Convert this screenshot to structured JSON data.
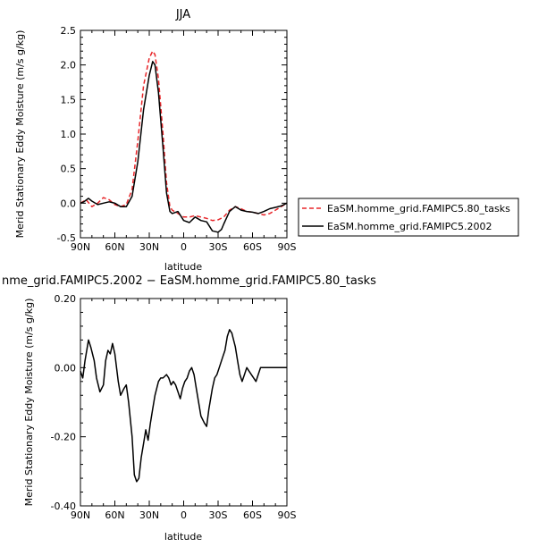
{
  "chart_data": [
    {
      "type": "line",
      "title": "JJA",
      "xlabel": "latitude",
      "ylabel": "Merid Stationary Eddy Moisture (m/s g/kg)",
      "xlim": [
        90,
        -90
      ],
      "ylim": [
        -0.5,
        2.5
      ],
      "x_ticks": [
        90,
        60,
        30,
        0,
        -30,
        -60,
        -90
      ],
      "x_tick_labels": [
        "90N",
        "60N",
        "30N",
        "0",
        "30S",
        "60S",
        "90S"
      ],
      "y_ticks": [
        -0.5,
        0,
        0.5,
        1,
        1.5,
        2,
        2.5
      ],
      "y_tick_labels": [
        "-0.5",
        "0.0",
        "0.5",
        "1.0",
        "1.5",
        "2.0",
        "2.5"
      ],
      "legend": "right",
      "series": [
        {
          "name": "EaSM.homme_grid.FAMIPC5.80_tasks",
          "color": "#e8262a",
          "style": "dashed",
          "x": [
            90,
            85,
            80,
            75,
            70,
            65,
            60,
            55,
            50,
            45,
            40,
            35,
            30,
            27,
            25,
            22,
            18,
            15,
            12,
            10,
            5,
            0,
            -5,
            -10,
            -15,
            -20,
            -25,
            -30,
            -35,
            -40,
            -45,
            -50,
            -55,
            -60,
            -65,
            -70,
            -75,
            -80,
            -85,
            -90
          ],
          "y": [
            0.0,
            0.05,
            -0.05,
            0.0,
            0.08,
            0.05,
            -0.02,
            -0.05,
            -0.02,
            0.2,
            0.9,
            1.7,
            2.1,
            2.2,
            2.15,
            1.8,
            1.0,
            0.3,
            -0.05,
            -0.1,
            -0.15,
            -0.2,
            -0.2,
            -0.18,
            -0.2,
            -0.22,
            -0.25,
            -0.24,
            -0.2,
            -0.1,
            -0.05,
            -0.08,
            -0.12,
            -0.13,
            -0.15,
            -0.17,
            -0.15,
            -0.1,
            -0.05,
            0.0
          ]
        },
        {
          "name": "EaSM.homme_grid.FAMIPC5.2002",
          "color": "#000000",
          "style": "solid",
          "x": [
            90,
            87,
            83,
            80,
            75,
            70,
            65,
            60,
            55,
            50,
            45,
            40,
            35,
            30,
            27,
            25,
            22,
            18,
            15,
            12,
            10,
            5,
            0,
            -5,
            -10,
            -15,
            -20,
            -25,
            -30,
            -33,
            -35,
            -40,
            -45,
            -50,
            -55,
            -60,
            -65,
            -70,
            -75,
            -80,
            -85,
            -90
          ],
          "y": [
            0.0,
            0.02,
            0.07,
            0.03,
            -0.02,
            0.0,
            0.02,
            0.0,
            -0.05,
            -0.05,
            0.1,
            0.6,
            1.35,
            1.85,
            2.05,
            2.0,
            1.6,
            0.8,
            0.15,
            -0.12,
            -0.15,
            -0.12,
            -0.25,
            -0.28,
            -0.2,
            -0.25,
            -0.27,
            -0.4,
            -0.42,
            -0.38,
            -0.3,
            -0.12,
            -0.05,
            -0.1,
            -0.12,
            -0.13,
            -0.15,
            -0.12,
            -0.08,
            -0.06,
            -0.04,
            0.0
          ]
        }
      ]
    },
    {
      "type": "line",
      "title": "nme_grid.FAMIPC5.2002 − EaSM.homme_grid.FAMIPC5.80_tasks",
      "xlabel": "latitude",
      "ylabel": "Merid Stationary Eddy Moisture (m/s g/kg)",
      "xlim": [
        90,
        -90
      ],
      "ylim": [
        -0.4,
        0.2
      ],
      "x_ticks": [
        90,
        60,
        30,
        0,
        -30,
        -60,
        -90
      ],
      "x_tick_labels": [
        "90N",
        "60N",
        "30N",
        "0",
        "30S",
        "60S",
        "90S"
      ],
      "y_ticks": [
        -0.4,
        -0.2,
        0,
        0.2
      ],
      "y_tick_labels": [
        "-0.40",
        "-0.20",
        "0.00",
        "0.20"
      ],
      "series": [
        {
          "color": "#000000",
          "style": "solid",
          "x": [
            90,
            88,
            86,
            83,
            81,
            78,
            76,
            73,
            70,
            68,
            66,
            64,
            62,
            60,
            57,
            55,
            52,
            50,
            48,
            45,
            43,
            41,
            39,
            37,
            35,
            33,
            31,
            29,
            27,
            25,
            22,
            20,
            18,
            15,
            13,
            11,
            9,
            7,
            5,
            3,
            1,
            -1,
            -3,
            -5,
            -7,
            -9,
            -11,
            -13,
            -15,
            -18,
            -20,
            -22,
            -25,
            -27,
            -29,
            -31,
            -34,
            -36,
            -38,
            -40,
            -42,
            -45,
            -47,
            -49,
            -51,
            -53,
            -55,
            -57,
            -59,
            -61,
            -63,
            -65,
            -67,
            -69,
            -71,
            -73,
            -75,
            -77,
            -79,
            -81,
            -83,
            -85,
            -87,
            -90
          ],
          "y": [
            -0.01,
            -0.03,
            0.02,
            0.08,
            0.06,
            0.02,
            -0.03,
            -0.07,
            -0.05,
            0.02,
            0.05,
            0.04,
            0.07,
            0.04,
            -0.04,
            -0.08,
            -0.06,
            -0.05,
            -0.1,
            -0.2,
            -0.31,
            -0.33,
            -0.32,
            -0.26,
            -0.22,
            -0.18,
            -0.21,
            -0.16,
            -0.12,
            -0.08,
            -0.04,
            -0.03,
            -0.03,
            -0.02,
            -0.03,
            -0.05,
            -0.04,
            -0.05,
            -0.07,
            -0.09,
            -0.06,
            -0.04,
            -0.03,
            -0.01,
            0.0,
            -0.02,
            -0.06,
            -0.1,
            -0.14,
            -0.16,
            -0.17,
            -0.12,
            -0.06,
            -0.03,
            -0.02,
            0.0,
            0.03,
            0.05,
            0.09,
            0.11,
            0.1,
            0.06,
            0.02,
            -0.02,
            -0.04,
            -0.02,
            0.0,
            -0.01,
            -0.02,
            -0.03,
            -0.04,
            -0.02,
            0.0,
            0.0,
            0.0,
            0.0,
            0.0,
            0.0,
            0.0,
            0.0,
            0.0,
            0.0,
            0.0,
            0.0
          ]
        }
      ]
    }
  ]
}
